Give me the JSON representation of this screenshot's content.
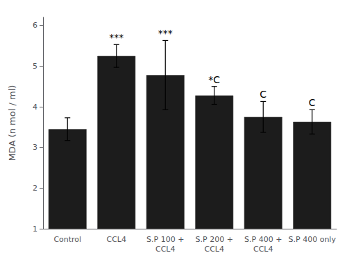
{
  "chart_data": {
    "type": "bar",
    "categories": [
      "Control",
      "CCL4",
      "S.P 100 +\nCCL4",
      "S.P 200 +\nCCL4",
      "S.P 400 +\nCCL4",
      "S.P 400 only"
    ],
    "values": [
      3.45,
      5.25,
      4.78,
      4.28,
      3.75,
      3.63
    ],
    "errors": [
      0.28,
      0.28,
      0.85,
      0.22,
      0.38,
      0.3
    ],
    "color": "#1c1c1c",
    "ylabel": "MDA (n mol / ml)",
    "ylim": [
      1.0,
      6.2
    ],
    "yticks": [
      1,
      2,
      3,
      4,
      5,
      6
    ],
    "annotations": [
      {
        "category": "CCL4",
        "text": "***"
      },
      {
        "category": "S.P 100 +\nCCL4",
        "text": "***"
      },
      {
        "category": "S.P 200 +\nCCL4",
        "text": "*C"
      },
      {
        "category": "S.P 400 +\nCCL4",
        "text": "C"
      },
      {
        "category": "S.P 400 only",
        "text": "C"
      }
    ],
    "grid": false
  }
}
